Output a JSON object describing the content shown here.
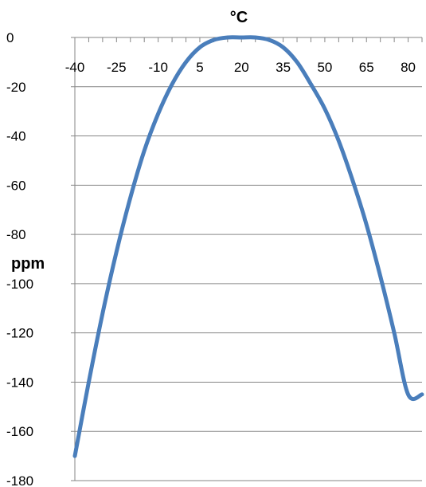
{
  "chart_data": {
    "type": "line",
    "title": "",
    "xlabel": "°C",
    "ylabel": "ppm",
    "xlim": [
      -40,
      85
    ],
    "ylim": [
      -180,
      0
    ],
    "x_ticks": [
      -40,
      -25,
      -10,
      5,
      20,
      35,
      50,
      65,
      80
    ],
    "y_ticks": [
      0,
      -20,
      -40,
      -60,
      -80,
      -100,
      -120,
      -140,
      -160,
      -180
    ],
    "x_tick_labels": [
      "-40",
      "-25",
      "-10",
      "5",
      "20",
      "35",
      "50",
      "65",
      "80"
    ],
    "y_tick_labels": [
      "0",
      "-20",
      "-40",
      "-60",
      "-80",
      "-100",
      "-120",
      "-140",
      "-160",
      "-180"
    ],
    "x_axis_position": "top",
    "grid": "horizontal",
    "series": [
      {
        "color": "#4a7ebb",
        "x": [
          -40,
          -35,
          -30,
          -25,
          -20,
          -15,
          -10,
          -5,
          0,
          5,
          10,
          15,
          20,
          25,
          30,
          35,
          40,
          45,
          50,
          55,
          60,
          65,
          70,
          75,
          80,
          85
        ],
        "y": [
          -170,
          -140,
          -112,
          -87,
          -65,
          -46,
          -31,
          -19,
          -10,
          -4,
          -1,
          0,
          0,
          0,
          -1,
          -4,
          -10,
          -19,
          -29,
          -42,
          -58,
          -76,
          -97,
          -120,
          -145,
          -145
        ]
      }
    ]
  },
  "colors": {
    "series": "#4a7ebb",
    "gridline": "#868686",
    "axis": "#868686"
  }
}
